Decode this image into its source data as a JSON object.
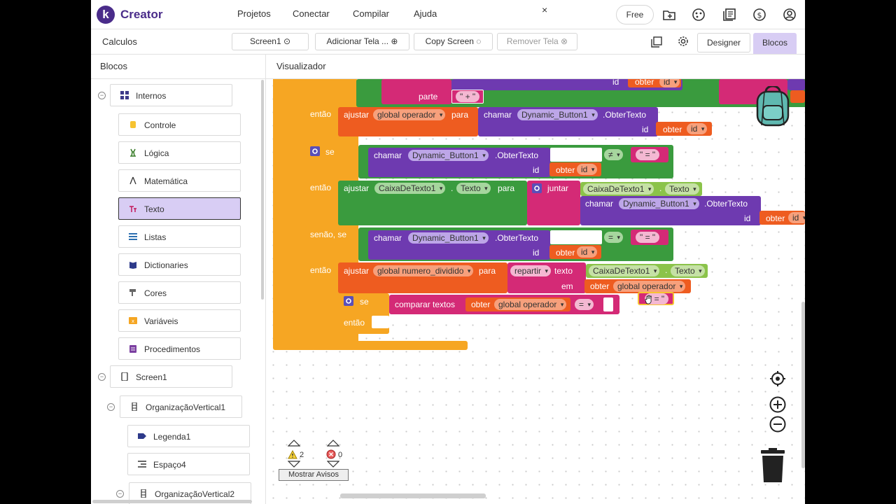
{
  "nav": {
    "logo_letter": "k",
    "brand": "Creator",
    "links": [
      "Projetos",
      "Conectar",
      "Compilar",
      "Ajuda"
    ],
    "close": "×",
    "free": "Free"
  },
  "toolbar": {
    "project": "Calculos",
    "screen": "Screen1",
    "add_screen": "Adicionar Tela ...",
    "copy_screen": "Copy Screen",
    "remove_screen": "Remover Tela",
    "designer": "Designer",
    "blocks": "Blocos"
  },
  "left": {
    "title": "Blocos",
    "builtin": "Internos",
    "categories": [
      "Controle",
      "Lógica",
      "Matemática",
      "Texto",
      "Listas",
      "Dictionaries",
      "Cores",
      "Variáveis",
      "Procedimentos"
    ],
    "screen": "Screen1",
    "components": [
      "OrganizaçãoVertical1",
      "Legenda1",
      "Espaço4",
      "OrganizaçãoVertical2"
    ]
  },
  "viewer": {
    "title": "Visualizador"
  },
  "blocks": {
    "kw_id": "id",
    "kw_obter": "obter",
    "kw_part": "parte",
    "kw_then": "então",
    "kw_set": "ajustar",
    "kw_to": "para",
    "kw_call": "chamar",
    "kw_if": "se",
    "kw_elseif": "senão, se",
    "kw_join": "juntar",
    "kw_split": "repartir",
    "kw_text": "texto",
    "kw_at": "em",
    "kw_compare": "comparar textos",
    "global_operator": "global operador",
    "global_num_div": "global numero_dividido",
    "dyn_button": "Dynamic_Button1",
    "get_text": ".ObterTexto",
    "textbox": "CaixaDeTexto1",
    "dot": ".",
    "texto": "Texto",
    "str_plus": "\" + \"",
    "str_eq": "\" = \"",
    "op_neq": "≠",
    "op_eq": "=",
    "op_eq2": "="
  },
  "warnings": {
    "warn_count": "2",
    "error_count": "0",
    "show_warnings": "Mostrar Avisos"
  }
}
